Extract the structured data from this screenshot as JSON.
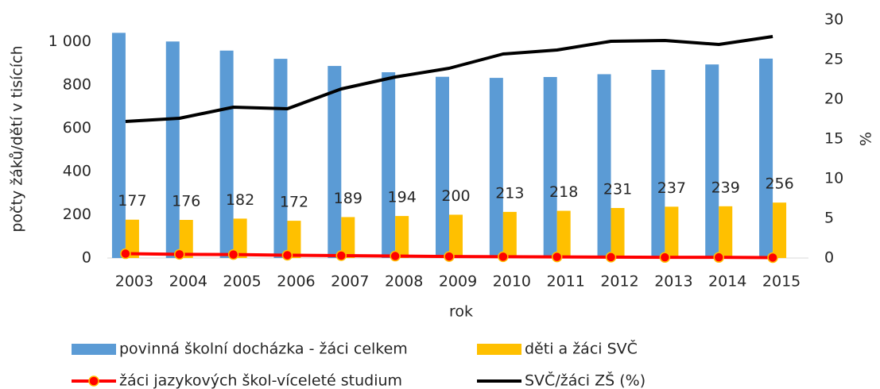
{
  "chart_data": {
    "type": "bar-line",
    "x_label": "rok",
    "y_label": "počty žáků/dětí v tisících",
    "y2_label": "%",
    "categories": [
      "2003",
      "2004",
      "2005",
      "2006",
      "2007",
      "2008",
      "2009",
      "2010",
      "2011",
      "2012",
      "2013",
      "2014",
      "2015"
    ],
    "ylim": [
      0,
      1100
    ],
    "yticks": [
      0,
      200,
      400,
      600,
      800,
      {
        "value": 1000,
        "label": "1 000"
      }
    ],
    "y2lim": [
      0,
      30
    ],
    "y2ticks": [
      0,
      5,
      10,
      15,
      20,
      25,
      30
    ],
    "series": [
      {
        "name": "povinná školní docházka - žáci celkem",
        "type": "bar",
        "color": "#5b9bd5",
        "values": [
          1040,
          1000,
          958,
          920,
          887,
          858,
          837,
          832,
          836,
          849,
          869,
          894,
          921
        ]
      },
      {
        "name": "děti a žáci SVČ",
        "type": "bar",
        "color": "#ffc000",
        "values": [
          177,
          176,
          182,
          172,
          189,
          194,
          200,
          213,
          218,
          231,
          237,
          239,
          256
        ],
        "show_labels": true
      },
      {
        "name": "žáci jazykových škol-víceleté studium",
        "type": "line",
        "color": "#ff0000",
        "marker": true,
        "values": [
          20,
          17,
          16,
          13,
          11,
          9,
          7,
          6,
          5,
          4,
          3,
          3,
          2
        ]
      },
      {
        "name": "SVČ/žáci ZŠ (%)",
        "type": "line",
        "color": "#000000",
        "axis": "y2",
        "values": [
          17.2,
          17.6,
          19.0,
          18.8,
          21.3,
          22.8,
          23.9,
          25.7,
          26.2,
          27.3,
          27.4,
          26.9,
          27.9
        ]
      }
    ]
  }
}
